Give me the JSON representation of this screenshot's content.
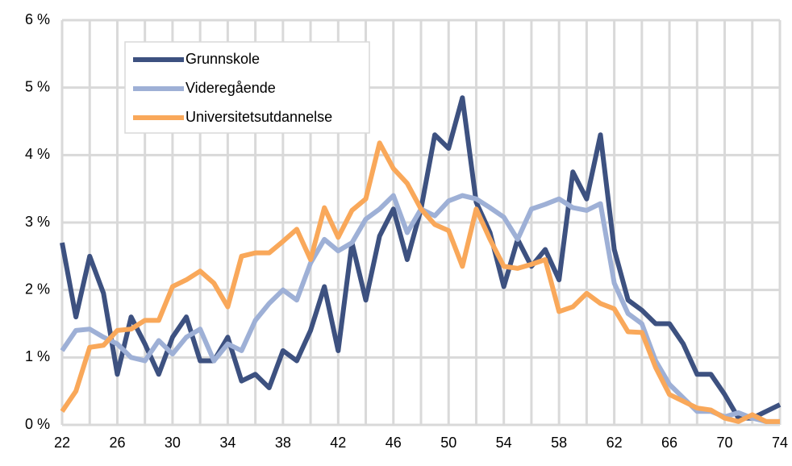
{
  "chart_data": {
    "type": "line",
    "x": [
      22,
      23,
      24,
      25,
      26,
      27,
      28,
      29,
      30,
      31,
      32,
      33,
      34,
      35,
      36,
      37,
      38,
      39,
      40,
      41,
      42,
      43,
      44,
      45,
      46,
      47,
      48,
      49,
      50,
      51,
      52,
      53,
      54,
      55,
      56,
      57,
      58,
      59,
      60,
      61,
      62,
      63,
      64,
      65,
      66,
      67,
      68,
      69,
      70,
      71,
      72,
      73,
      74
    ],
    "series": [
      {
        "name": "Grunnskole",
        "color": "#3d5180",
        "values": [
          2.7,
          1.6,
          2.5,
          1.95,
          0.75,
          1.6,
          1.2,
          0.75,
          1.3,
          1.6,
          0.95,
          0.95,
          1.3,
          0.65,
          0.75,
          0.55,
          1.1,
          0.95,
          1.4,
          2.05,
          1.1,
          2.7,
          1.85,
          2.8,
          3.2,
          2.45,
          3.2,
          4.3,
          4.1,
          4.85,
          3.3,
          2.85,
          2.05,
          2.75,
          2.35,
          2.6,
          2.15,
          3.75,
          3.35,
          4.3,
          2.6,
          1.85,
          1.7,
          1.5,
          1.5,
          1.2,
          0.75,
          0.75,
          0.45,
          0.1,
          0.1,
          0.2,
          0.3
        ]
      },
      {
        "name": "Videregående",
        "color": "#9eb0d6",
        "values": [
          1.1,
          1.4,
          1.42,
          1.3,
          1.2,
          1.0,
          0.95,
          1.25,
          1.05,
          1.3,
          1.42,
          0.95,
          1.2,
          1.1,
          1.55,
          1.8,
          2.0,
          1.85,
          2.4,
          2.75,
          2.58,
          2.7,
          3.05,
          3.2,
          3.4,
          2.85,
          3.2,
          3.1,
          3.32,
          3.4,
          3.35,
          3.22,
          3.08,
          2.75,
          3.2,
          3.27,
          3.35,
          3.22,
          3.18,
          3.28,
          2.1,
          1.65,
          1.5,
          0.95,
          0.6,
          0.4,
          0.2,
          0.2,
          0.12,
          0.18,
          0.1,
          0.05,
          0.05
        ]
      },
      {
        "name": "Universitetsutdannelse",
        "color": "#f9a85a",
        "values": [
          0.2,
          0.5,
          1.15,
          1.18,
          1.4,
          1.42,
          1.55,
          1.55,
          2.05,
          2.15,
          2.28,
          2.1,
          1.75,
          2.5,
          2.55,
          2.55,
          2.72,
          2.9,
          2.45,
          3.22,
          2.78,
          3.18,
          3.35,
          4.18,
          3.8,
          3.58,
          3.2,
          2.97,
          2.88,
          2.35,
          3.2,
          2.75,
          2.35,
          2.32,
          2.38,
          2.45,
          1.68,
          1.75,
          1.95,
          1.8,
          1.72,
          1.38,
          1.37,
          0.85,
          0.45,
          0.35,
          0.25,
          0.22,
          0.1,
          0.05,
          0.15,
          0.05,
          0.05
        ]
      }
    ],
    "xlim": [
      22,
      74
    ],
    "xticks": [
      22,
      26,
      30,
      34,
      38,
      42,
      46,
      50,
      54,
      58,
      62,
      66,
      70,
      74
    ],
    "xgrid": [
      22,
      24,
      26,
      28,
      30,
      32,
      34,
      36,
      38,
      40,
      42,
      44,
      46,
      48,
      50,
      52,
      54,
      56,
      58,
      60,
      62,
      64,
      66,
      68,
      70,
      72,
      74
    ],
    "ylim": [
      0,
      6
    ],
    "yticks": [
      {
        "value": 0,
        "label": "0 %"
      },
      {
        "value": 1,
        "label": "1 %"
      },
      {
        "value": 2,
        "label": "2 %"
      },
      {
        "value": 3,
        "label": "3 %"
      },
      {
        "value": 4,
        "label": "4 %"
      },
      {
        "value": 5,
        "label": "5 %"
      },
      {
        "value": 6,
        "label": "6 %"
      }
    ],
    "grid": true,
    "legend": "upper left"
  }
}
